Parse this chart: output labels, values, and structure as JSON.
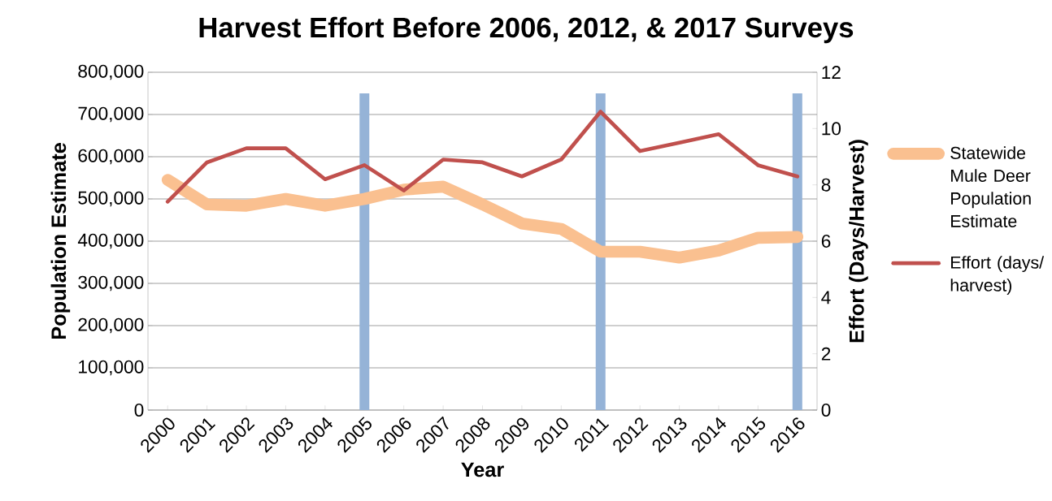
{
  "chart_data": {
    "type": "line",
    "title": "Harvest Effort Before 2006, 2012, & 2017 Surveys",
    "xlabel": "Year",
    "ylabel": "Population Estimate",
    "y2label": "Effort (Days/Harvest)",
    "categories": [
      "2000",
      "2001",
      "2002",
      "2003",
      "2004",
      "2005",
      "2006",
      "2007",
      "2008",
      "2009",
      "2010",
      "2011",
      "2012",
      "2013",
      "2014",
      "2015",
      "2016"
    ],
    "series": [
      {
        "type": "bar",
        "color": "#95b3d7",
        "values": [
          null,
          null,
          null,
          null,
          null,
          750000,
          null,
          null,
          null,
          null,
          null,
          750000,
          null,
          null,
          null,
          null,
          750000
        ]
      },
      {
        "name": "Statewide Mule Deer Population Estimate",
        "color": "#fac090",
        "values": [
          545000,
          487000,
          484000,
          500000,
          484000,
          500000,
          522000,
          529000,
          487000,
          442000,
          429000,
          375000,
          375000,
          361000,
          378000,
          408000,
          410000
        ]
      },
      {
        "name": "Effort (days/ harvest)",
        "color": "#c0504d",
        "axis": "y2",
        "values": [
          7.4,
          8.8,
          9.3,
          9.3,
          8.2,
          8.7,
          7.8,
          8.9,
          8.8,
          8.3,
          8.9,
          10.6,
          9.2,
          9.5,
          9.8,
          8.7,
          8.3
        ]
      }
    ],
    "ylim": [
      0,
      800000
    ],
    "yticks": [
      0,
      {
        "value": 100000,
        "label": "100,000"
      },
      {
        "value": 200000,
        "label": "200,000"
      },
      {
        "value": 300000,
        "label": "300,000"
      },
      {
        "value": 400000,
        "label": "400,000"
      },
      {
        "value": 500000,
        "label": "500,000"
      },
      {
        "value": 600000,
        "label": "600,000"
      },
      {
        "value": 700000,
        "label": "700,000"
      },
      {
        "value": 800000,
        "label": "800,000"
      }
    ],
    "y2lim": [
      0,
      12
    ],
    "y2ticks": [
      0,
      2,
      4,
      6,
      8,
      10,
      12
    ],
    "grid": "y",
    "legend": "right"
  }
}
